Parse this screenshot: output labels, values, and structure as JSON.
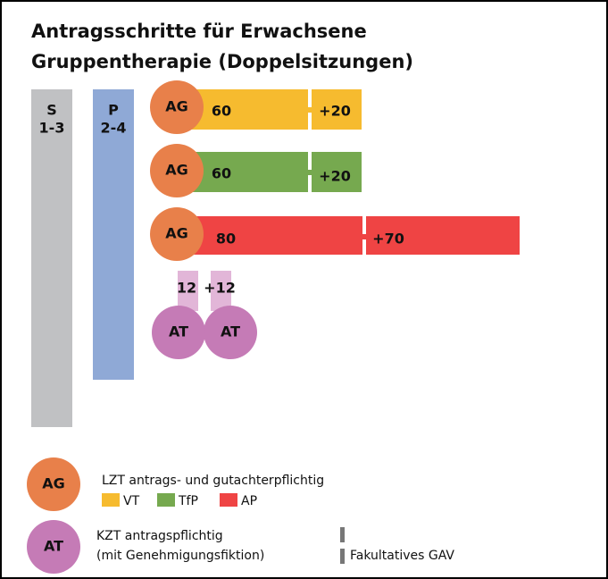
{
  "header": {
    "title_lines": [
      "Antragsschritte für Erwachsene",
      "Gruppentherapie (Doppelsitzungen)"
    ]
  },
  "columns": [
    {
      "label": "S",
      "range": "1-3"
    },
    {
      "label": "P",
      "range": "2-4"
    }
  ],
  "rows": [
    {
      "badge": "AG",
      "first": "60",
      "second": "+20"
    },
    {
      "badge": "AG",
      "first": "60",
      "second": "+20"
    },
    {
      "badge": "AG",
      "first": "80",
      "second": "+70"
    }
  ],
  "short_term": {
    "first": "12",
    "second": "+12",
    "badges": [
      "AT",
      "AT"
    ]
  },
  "legend": {
    "ag": {
      "badge": "AG",
      "text": "LZT antrags- und gutachterpflichtig",
      "items": [
        "VT",
        "TfP",
        "AP"
      ]
    },
    "at": {
      "badge": "AT",
      "lines": [
        "KZT antragspflichtig",
        "(mit Genehmigungsfiktion)"
      ]
    },
    "gav": "Fakultatives GAV"
  }
}
